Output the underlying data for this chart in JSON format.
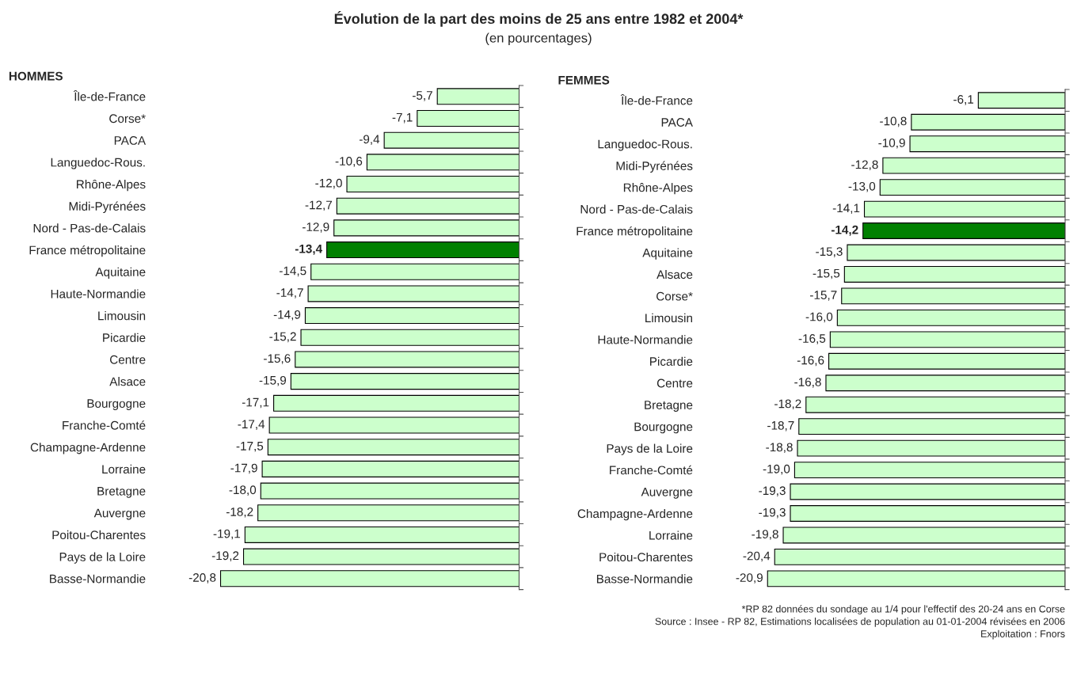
{
  "chart_data": [
    {
      "type": "other",
      "title": "Évolution de la part des moins de 25 ans entre 1982 et 2004*",
      "subtitle": "(en pourcentages)",
      "annotations": [
        "*RP 82 données du sondage au 1/4 pour l'effectif des 20-24 ans en Corse",
        "Source : Insee - RP 82, Estimations localisées de population au 01-01-2004 révisées en 2006",
        "Exploitation : Fnors"
      ]
    },
    {
      "type": "bar",
      "orientation": "horizontal",
      "title": "HOMMES",
      "categories": [
        "Île-de-France",
        "Corse*",
        "PACA",
        "Languedoc-Rous.",
        "Rhône-Alpes",
        "Midi-Pyrénées",
        "Nord - Pas-de-Calais",
        "France métropolitaine",
        "Aquitaine",
        "Haute-Normandie",
        "Limousin",
        "Picardie",
        "Centre",
        "Alsace",
        "Bourgogne",
        "Franche-Comté",
        "Champagne-Ardenne",
        "Lorraine",
        "Bretagne",
        "Auvergne",
        "Poitou-Charentes",
        "Pays de la Loire",
        "Basse-Normandie"
      ],
      "values": [
        -5.7,
        -7.1,
        -9.4,
        -10.6,
        -12.0,
        -12.7,
        -12.9,
        -13.4,
        -14.5,
        -14.7,
        -14.9,
        -15.2,
        -15.6,
        -15.9,
        -17.1,
        -17.4,
        -17.5,
        -17.9,
        -18.0,
        -18.2,
        -19.1,
        -19.2,
        -20.8
      ],
      "value_labels": [
        "-5,7",
        "-7,1",
        "-9,4",
        "-10,6",
        "-12,0",
        "-12,7",
        "-12,9",
        "-13,4",
        "-14,5",
        "-14,7",
        "-14,9",
        "-15,2",
        "-15,6",
        "-15,9",
        "-17,1",
        "-17,4",
        "-17,5",
        "-17,9",
        "-18,0",
        "-18,2",
        "-19,1",
        "-19,2",
        "-20,8"
      ],
      "colors": [
        "#ccffcc",
        "#ccffcc",
        "#ccffcc",
        "#ccffcc",
        "#ccffcc",
        "#ccffcc",
        "#ccffcc",
        "#008000",
        "#ccffcc",
        "#ccffcc",
        "#ccffcc",
        "#ccffcc",
        "#ccffcc",
        "#ccffcc",
        "#ccffcc",
        "#ccffcc",
        "#ccffcc",
        "#ccffcc",
        "#ccffcc",
        "#ccffcc",
        "#ccffcc",
        "#ccffcc",
        "#ccffcc"
      ],
      "tick_labels": "y",
      "grid": false,
      "legend": false
    },
    {
      "type": "bar",
      "orientation": "horizontal",
      "title": "FEMMES",
      "categories": [
        "Île-de-France",
        "PACA",
        "Languedoc-Rous.",
        "Midi-Pyrénées",
        "Rhône-Alpes",
        "Nord - Pas-de-Calais",
        "France métropolitaine",
        "Aquitaine",
        "Alsace",
        "Corse*",
        "Limousin",
        "Haute-Normandie",
        "Picardie",
        "Centre",
        "Bretagne",
        "Bourgogne",
        "Pays de la Loire",
        "Franche-Comté",
        "Auvergne",
        "Champagne-Ardenne",
        "Lorraine",
        "Poitou-Charentes",
        "Basse-Normandie"
      ],
      "values": [
        -6.1,
        -10.8,
        -10.9,
        -12.8,
        -13.0,
        -14.1,
        -14.2,
        -15.3,
        -15.5,
        -15.7,
        -16.0,
        -16.5,
        -16.6,
        -16.8,
        -18.2,
        -18.7,
        -18.8,
        -19.0,
        -19.3,
        -19.3,
        -19.8,
        -20.4,
        -20.9
      ],
      "value_labels": [
        "-6,1",
        "-10,8",
        "-10,9",
        "-12,8",
        "-13,0",
        "-14,1",
        "-14,2",
        "-15,3",
        "-15,5",
        "-15,7",
        "-16,0",
        "-16,5",
        "-16,6",
        "-16,8",
        "-18,2",
        "-18,7",
        "-18,8",
        "-19,0",
        "-19,3",
        "-19,3",
        "-19,8",
        "-20,4",
        "-20,9"
      ],
      "colors": [
        "#ccffcc",
        "#ccffcc",
        "#ccffcc",
        "#ccffcc",
        "#ccffcc",
        "#ccffcc",
        "#008000",
        "#ccffcc",
        "#ccffcc",
        "#ccffcc",
        "#ccffcc",
        "#ccffcc",
        "#ccffcc",
        "#ccffcc",
        "#ccffcc",
        "#ccffcc",
        "#ccffcc",
        "#ccffcc",
        "#ccffcc",
        "#ccffcc",
        "#ccffcc",
        "#ccffcc",
        "#ccffcc"
      ],
      "tick_labels": "y",
      "grid": false,
      "legend": false
    }
  ]
}
